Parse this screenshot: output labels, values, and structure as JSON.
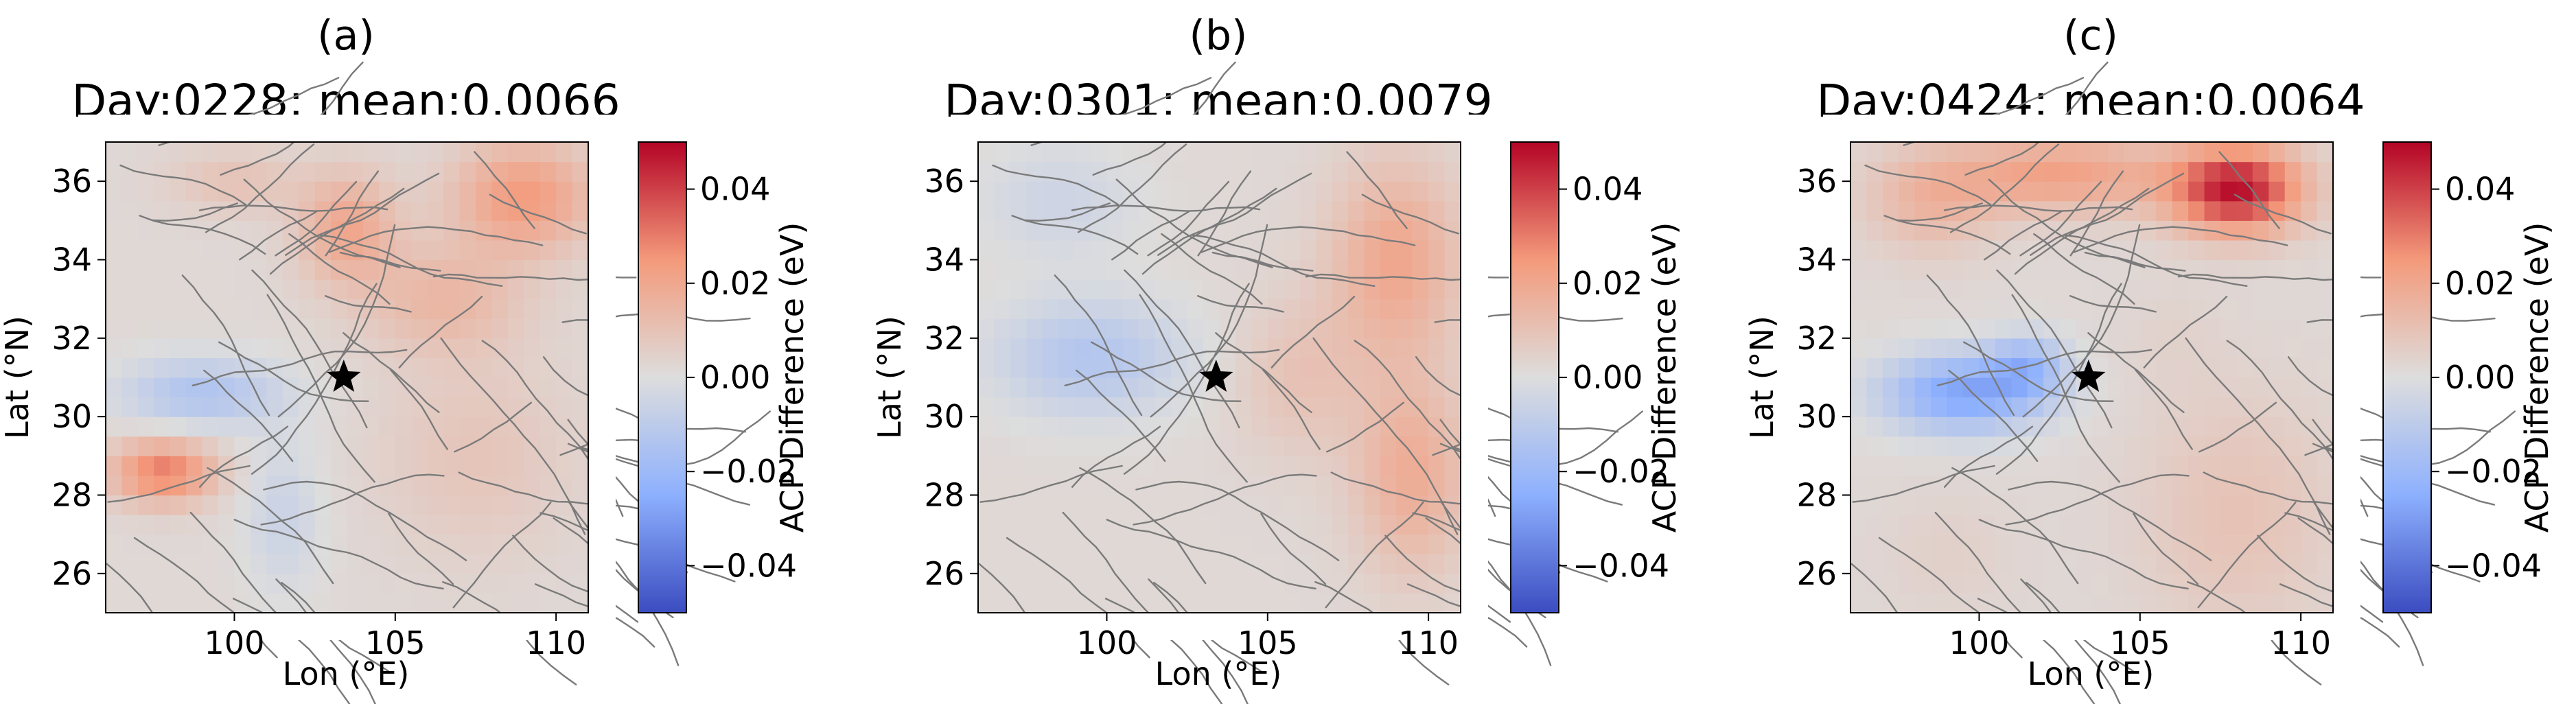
{
  "chart_data": [
    {
      "type": "heatmap",
      "panel_label": "(a)",
      "title": "Day:0228; mean:0.0066",
      "xlabel": "Lon (°E)",
      "ylabel": "Lat (°N)",
      "xlim": [
        96,
        111
      ],
      "ylim": [
        25,
        37
      ],
      "xticks": [
        "100",
        "105",
        "110"
      ],
      "yticks": [
        "26",
        "28",
        "30",
        "32",
        "34",
        "36"
      ],
      "epicenter": {
        "lon": 103.4,
        "lat": 31.0,
        "marker": "star"
      },
      "colorbar": {
        "label": "ACP Difference (eV)",
        "vmin": -0.05,
        "vmax": 0.05,
        "ticks": [
          "−0.04",
          "−0.02",
          "0.00",
          "0.02",
          "0.04"
        ],
        "cmap": "coolwarm"
      },
      "anomalies": [
        {
          "lon": 99,
          "lat": 30.6,
          "sx": 2.5,
          "sy": 0.9,
          "v": -0.016
        },
        {
          "lon": 101.5,
          "lat": 27.5,
          "sx": 1.2,
          "sy": 2.0,
          "v": -0.008
        },
        {
          "lon": 97.8,
          "lat": 28.6,
          "sx": 1.6,
          "sy": 0.8,
          "v": 0.028
        },
        {
          "lon": 109,
          "lat": 35.6,
          "sx": 2.2,
          "sy": 1.4,
          "v": 0.022
        },
        {
          "lon": 103.5,
          "lat": 34.8,
          "sx": 1.5,
          "sy": 1.4,
          "v": 0.018
        },
        {
          "lon": 106.5,
          "lat": 33.0,
          "sx": 2.5,
          "sy": 1.4,
          "v": 0.012
        },
        {
          "lon": 100,
          "lat": 36,
          "sx": 2.0,
          "sy": 0.8,
          "v": 0.008
        },
        {
          "lon": 107.5,
          "lat": 29,
          "sx": 3.0,
          "sy": 2.5,
          "v": 0.007
        },
        {
          "lon": 105,
          "lat": 25.5,
          "sx": 2.0,
          "sy": 1.0,
          "v": 0.0
        }
      ]
    },
    {
      "type": "heatmap",
      "panel_label": "(b)",
      "title": "Day:0301; mean:0.0079",
      "xlabel": "Lon (°E)",
      "ylabel": "Lat (°N)",
      "xlim": [
        96,
        111
      ],
      "ylim": [
        25,
        37
      ],
      "xticks": [
        "100",
        "105",
        "110"
      ],
      "yticks": [
        "26",
        "28",
        "30",
        "32",
        "34",
        "36"
      ],
      "epicenter": {
        "lon": 103.4,
        "lat": 31.0,
        "marker": "star"
      },
      "colorbar": {
        "label": "ACP Difference (eV)",
        "vmin": -0.05,
        "vmax": 0.05,
        "ticks": [
          "−0.04",
          "−0.02",
          "0.00",
          "0.02",
          "0.04"
        ],
        "cmap": "coolwarm"
      },
      "anomalies": [
        {
          "lon": 99.5,
          "lat": 31.5,
          "sx": 3.0,
          "sy": 1.5,
          "v": -0.015
        },
        {
          "lon": 98.5,
          "lat": 35.5,
          "sx": 2.5,
          "sy": 1.5,
          "v": -0.007
        },
        {
          "lon": 109,
          "lat": 34,
          "sx": 2.0,
          "sy": 2.5,
          "v": 0.018
        },
        {
          "lon": 109.5,
          "lat": 28.5,
          "sx": 1.8,
          "sy": 2.5,
          "v": 0.016
        },
        {
          "lon": 106,
          "lat": 31,
          "sx": 2.0,
          "sy": 2.0,
          "v": 0.008
        },
        {
          "lon": 102,
          "lat": 26,
          "sx": 2.0,
          "sy": 1.2,
          "v": 0.0
        }
      ]
    },
    {
      "type": "heatmap",
      "panel_label": "(c)",
      "title": "Day:0424; mean:0.0064",
      "xlabel": "Lon (°E)",
      "ylabel": "Lat (°N)",
      "xlim": [
        96,
        111
      ],
      "ylim": [
        25,
        37
      ],
      "xticks": [
        "100",
        "105",
        "110"
      ],
      "yticks": [
        "26",
        "28",
        "30",
        "32",
        "34",
        "36"
      ],
      "epicenter": {
        "lon": 103.4,
        "lat": 31.0,
        "marker": "star"
      },
      "colorbar": {
        "label": "ACP Difference (eV)",
        "vmin": -0.05,
        "vmax": 0.05,
        "ticks": [
          "−0.04",
          "−0.02",
          "0.00",
          "0.02",
          "0.04"
        ],
        "cmap": "coolwarm"
      },
      "anomalies": [
        {
          "lon": 108,
          "lat": 35.8,
          "sx": 2.0,
          "sy": 1.1,
          "v": 0.045
        },
        {
          "lon": 102.5,
          "lat": 36.2,
          "sx": 3.5,
          "sy": 1.0,
          "v": 0.02
        },
        {
          "lon": 98.5,
          "lat": 35.5,
          "sx": 2.0,
          "sy": 1.3,
          "v": 0.012
        },
        {
          "lon": 99.5,
          "lat": 30.6,
          "sx": 2.5,
          "sy": 1.0,
          "v": -0.03
        },
        {
          "lon": 101.5,
          "lat": 31.3,
          "sx": 1.2,
          "sy": 0.8,
          "v": -0.018
        },
        {
          "lon": 106,
          "lat": 32,
          "sx": 1.5,
          "sy": 1.5,
          "v": 0.002
        },
        {
          "lon": 108,
          "lat": 27.5,
          "sx": 3.0,
          "sy": 3.0,
          "v": 0.008
        },
        {
          "lon": 99,
          "lat": 26.5,
          "sx": 2.0,
          "sy": 1.5,
          "v": 0.003
        }
      ]
    }
  ]
}
